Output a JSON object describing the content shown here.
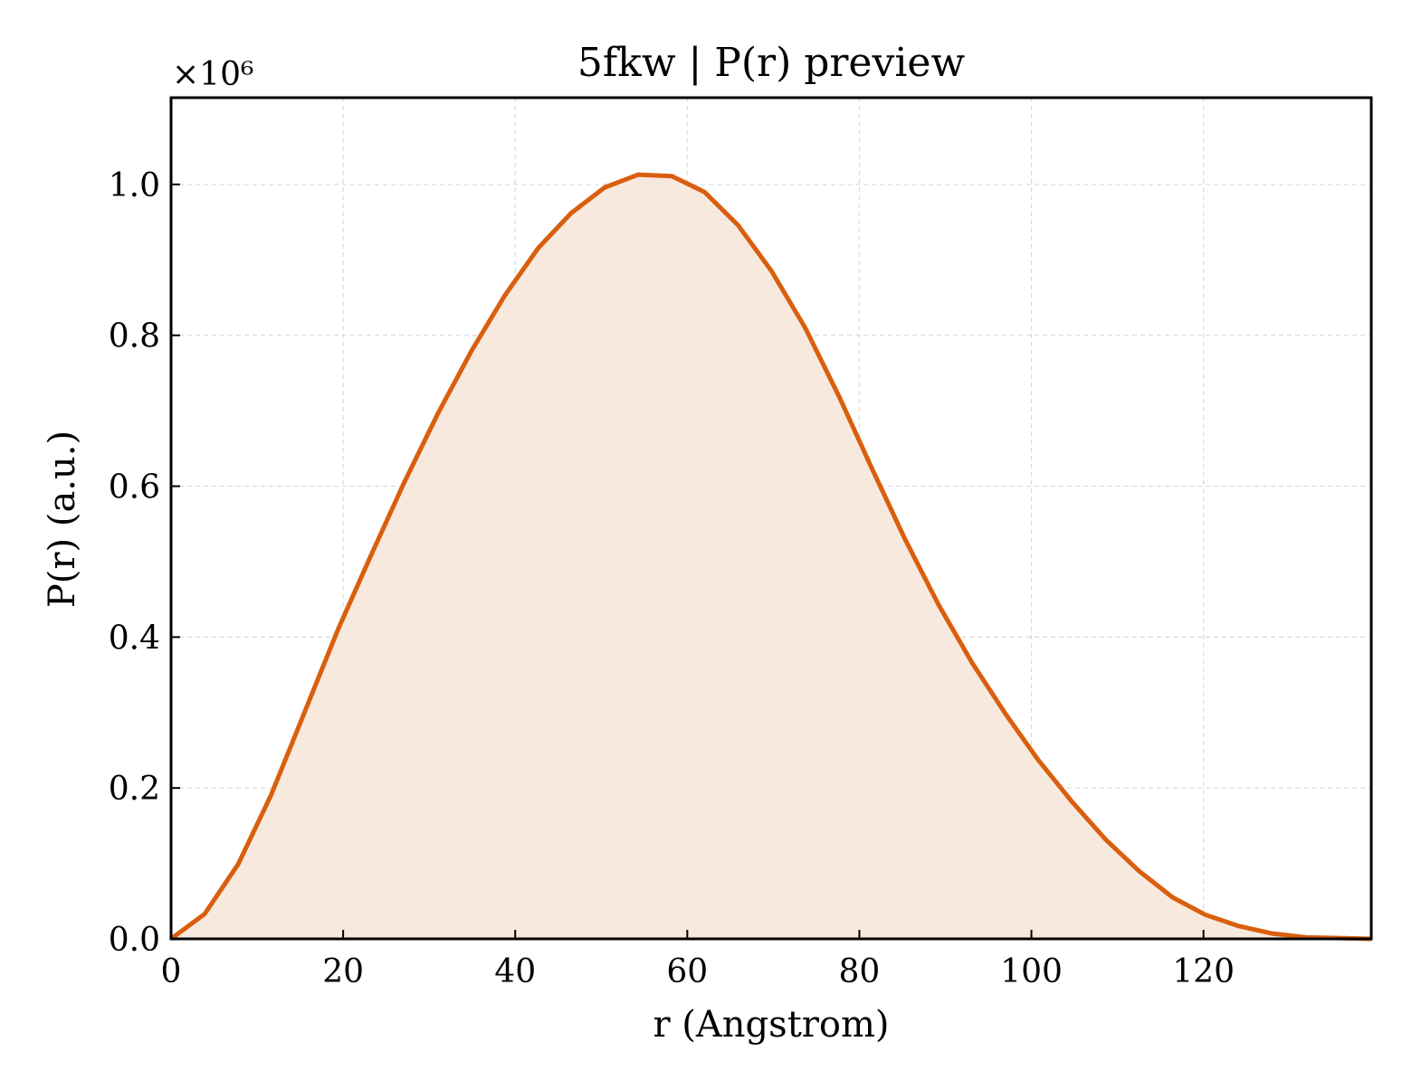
{
  "chart_data": {
    "type": "area",
    "title": "5fkw | P(r) preview",
    "xlabel": "r (Angstrom)",
    "ylabel": "P(r) (a.u.)",
    "y_scale_label": "×10⁶",
    "y_multiplier": 1000000,
    "xlim": [
      0,
      139.5
    ],
    "ylim": [
      0,
      1.115
    ],
    "xticks": [
      0,
      20,
      40,
      60,
      80,
      100,
      120
    ],
    "xtick_labels": [
      "0",
      "20",
      "40",
      "60",
      "80",
      "100",
      "120"
    ],
    "yticks": [
      0.0,
      0.2,
      0.4,
      0.6,
      0.8,
      1.0
    ],
    "ytick_labels": [
      "0.0",
      "0.2",
      "0.4",
      "0.6",
      "0.8",
      "1.0"
    ],
    "grid": true,
    "legend": "none",
    "series": [
      {
        "color": "#d95f0e",
        "fill_color": "#f8e9de",
        "x": [
          0,
          3.9,
          7.8,
          11.6,
          15.5,
          19.4,
          23.3,
          27.1,
          31.0,
          34.9,
          38.8,
          42.7,
          46.5,
          50.4,
          54.3,
          58.2,
          62.0,
          65.9,
          69.8,
          73.7,
          77.6,
          81.4,
          85.3,
          89.2,
          93.1,
          97.0,
          100.8,
          104.7,
          108.6,
          112.5,
          116.4,
          120.2,
          124.1,
          128.0,
          131.9,
          135.7,
          139.5
        ],
        "y": [
          0.0,
          0.033,
          0.099,
          0.19,
          0.3,
          0.41,
          0.51,
          0.605,
          0.696,
          0.779,
          0.853,
          0.916,
          0.962,
          0.996,
          1.013,
          1.011,
          0.99,
          0.946,
          0.885,
          0.81,
          0.72,
          0.625,
          0.53,
          0.443,
          0.366,
          0.298,
          0.237,
          0.182,
          0.132,
          0.09,
          0.055,
          0.032,
          0.017,
          0.007,
          0.002,
          0.001,
          0.0
        ]
      }
    ]
  }
}
